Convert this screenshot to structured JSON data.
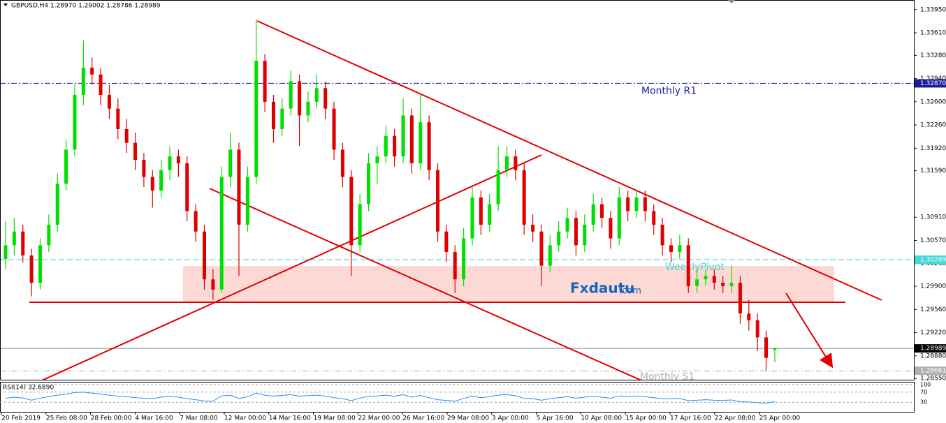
{
  "chart_data": {
    "type": "candlestick",
    "title": "GBPUSD,H4  1.28970 1.29002 1.28786 1.28989",
    "up_color": "#00e000",
    "down_color": "#e00000",
    "ohlc": [
      [
        1.303,
        1.3085,
        1.3015,
        1.305
      ],
      [
        1.305,
        1.309,
        1.3035,
        1.307
      ],
      [
        1.307,
        1.308,
        1.3025,
        1.3035
      ],
      [
        1.3035,
        1.3045,
        1.2975,
        1.2995
      ],
      [
        1.2995,
        1.306,
        1.2985,
        1.305
      ],
      [
        1.305,
        1.3095,
        1.304,
        1.308
      ],
      [
        1.308,
        1.3155,
        1.307,
        1.314
      ],
      [
        1.314,
        1.3205,
        1.313,
        1.319
      ],
      [
        1.319,
        1.3285,
        1.318,
        1.327
      ],
      [
        1.327,
        1.335,
        1.3255,
        1.331
      ],
      [
        1.331,
        1.3325,
        1.3285,
        1.33
      ],
      [
        1.33,
        1.331,
        1.3255,
        1.327
      ],
      [
        1.327,
        1.3285,
        1.3235,
        1.325
      ],
      [
        1.325,
        1.3265,
        1.3205,
        1.322
      ],
      [
        1.322,
        1.3235,
        1.3185,
        1.32
      ],
      [
        1.32,
        1.3215,
        1.316,
        1.3175
      ],
      [
        1.3175,
        1.3185,
        1.3135,
        1.315
      ],
      [
        1.315,
        1.316,
        1.3105,
        1.313
      ],
      [
        1.313,
        1.3175,
        1.312,
        1.316
      ],
      [
        1.316,
        1.3195,
        1.3145,
        1.318
      ],
      [
        1.318,
        1.319,
        1.315,
        1.317
      ],
      [
        1.317,
        1.318,
        1.3085,
        1.31
      ],
      [
        1.31,
        1.311,
        1.3055,
        1.307
      ],
      [
        1.307,
        1.308,
        1.2985,
        1.3
      ],
      [
        1.3,
        1.3015,
        1.297,
        1.2985
      ],
      [
        1.2985,
        1.3165,
        1.298,
        1.315
      ],
      [
        1.315,
        1.3215,
        1.3135,
        1.319
      ],
      [
        1.319,
        1.32,
        1.3005,
        1.308
      ],
      [
        1.308,
        1.3165,
        1.307,
        1.315
      ],
      [
        1.315,
        1.338,
        1.314,
        1.332
      ],
      [
        1.332,
        1.333,
        1.3245,
        1.326
      ],
      [
        1.326,
        1.327,
        1.32,
        1.322
      ],
      [
        1.322,
        1.3265,
        1.321,
        1.325
      ],
      [
        1.325,
        1.3305,
        1.324,
        1.329
      ],
      [
        1.329,
        1.33,
        1.3195,
        1.324
      ],
      [
        1.324,
        1.3275,
        1.323,
        1.326
      ],
      [
        1.326,
        1.33,
        1.325,
        1.328
      ],
      [
        1.328,
        1.329,
        1.3235,
        1.325
      ],
      [
        1.325,
        1.326,
        1.3175,
        1.319
      ],
      [
        1.319,
        1.32,
        1.3135,
        1.315
      ],
      [
        1.315,
        1.316,
        1.3005,
        1.305
      ],
      [
        1.305,
        1.3125,
        1.304,
        1.311
      ],
      [
        1.311,
        1.3185,
        1.31,
        1.317
      ],
      [
        1.317,
        1.3195,
        1.314,
        1.318
      ],
      [
        1.318,
        1.3225,
        1.317,
        1.321
      ],
      [
        1.321,
        1.322,
        1.3165,
        1.318
      ],
      [
        1.318,
        1.3265,
        1.317,
        1.324
      ],
      [
        1.324,
        1.325,
        1.3155,
        1.317
      ],
      [
        1.317,
        1.327,
        1.316,
        1.323
      ],
      [
        1.323,
        1.324,
        1.3145,
        1.316
      ],
      [
        1.316,
        1.317,
        1.3055,
        1.307
      ],
      [
        1.307,
        1.308,
        1.3025,
        1.304
      ],
      [
        1.304,
        1.305,
        1.298,
        1.3
      ],
      [
        1.3,
        1.3075,
        1.299,
        1.306
      ],
      [
        1.306,
        1.3135,
        1.305,
        1.312
      ],
      [
        1.312,
        1.313,
        1.3065,
        1.308
      ],
      [
        1.308,
        1.3125,
        1.307,
        1.311
      ],
      [
        1.311,
        1.3195,
        1.31,
        1.316
      ],
      [
        1.316,
        1.3195,
        1.315,
        1.318
      ],
      [
        1.318,
        1.319,
        1.3145,
        1.316
      ],
      [
        1.316,
        1.317,
        1.3065,
        1.308
      ],
      [
        1.308,
        1.3095,
        1.3055,
        1.307
      ],
      [
        1.307,
        1.308,
        1.299,
        1.302
      ],
      [
        1.302,
        1.3065,
        1.301,
        1.305
      ],
      [
        1.305,
        1.3085,
        1.304,
        1.307
      ],
      [
        1.307,
        1.3105,
        1.306,
        1.309
      ],
      [
        1.309,
        1.31,
        1.3035,
        1.305
      ],
      [
        1.305,
        1.3095,
        1.304,
        1.308
      ],
      [
        1.308,
        1.3125,
        1.307,
        1.311
      ],
      [
        1.311,
        1.312,
        1.3075,
        1.309
      ],
      [
        1.309,
        1.31,
        1.3045,
        1.306
      ],
      [
        1.306,
        1.3135,
        1.305,
        1.312
      ],
      [
        1.312,
        1.313,
        1.3085,
        1.31
      ],
      [
        1.31,
        1.313,
        1.309,
        1.312
      ],
      [
        1.312,
        1.313,
        1.3085,
        1.31
      ],
      [
        1.31,
        1.311,
        1.3065,
        1.308
      ],
      [
        1.308,
        1.309,
        1.3035,
        1.305
      ],
      [
        1.305,
        1.306,
        1.3025,
        1.304
      ],
      [
        1.304,
        1.3065,
        1.303,
        1.305
      ],
      [
        1.305,
        1.306,
        1.298,
        1.299
      ],
      [
        1.299,
        1.3015,
        1.298,
        1.3
      ],
      [
        1.3,
        1.3015,
        1.299,
        1.3005
      ],
      [
        1.3005,
        1.3015,
        1.2985,
        1.2995
      ],
      [
        1.2995,
        1.3005,
        1.298,
        1.299
      ],
      [
        1.299,
        1.302,
        1.298,
        1.2995
      ],
      [
        1.2995,
        1.3005,
        1.2935,
        1.295
      ],
      [
        1.295,
        1.297,
        1.2925,
        1.294
      ],
      [
        1.294,
        1.295,
        1.2895,
        1.2915
      ],
      [
        1.2915,
        1.2925,
        1.2866,
        1.2885
      ],
      [
        1.2897,
        1.29002,
        1.28786,
        1.28989
      ]
    ],
    "ylim": [
      1.2852,
      1.3406
    ],
    "yticks": [
      {
        "value": 1.3395,
        "label": "1.33950"
      },
      {
        "value": 1.3361,
        "label": "1.33610"
      },
      {
        "value": 1.3328,
        "label": "1.33280"
      },
      {
        "value": 1.3294,
        "label": "1.32940"
      },
      {
        "value": 1.326,
        "label": "1.32600"
      },
      {
        "value": 1.3226,
        "label": "1.32260"
      },
      {
        "value": 1.3192,
        "label": "1.31920"
      },
      {
        "value": 1.3159,
        "label": "1.31590"
      },
      {
        "value": 1.3091,
        "label": "1.30910"
      },
      {
        "value": 1.3057,
        "label": "1.30570"
      },
      {
        "value": 1.3023,
        "label": "1.30230"
      },
      {
        "value": 1.299,
        "label": "1.29900"
      },
      {
        "value": 1.2956,
        "label": "1.29560"
      },
      {
        "value": 1.2922,
        "label": "1.29220"
      },
      {
        "value": 1.2888,
        "label": "1.28880"
      },
      {
        "value": 1.2855,
        "label": "1.28550"
      }
    ],
    "levels": [
      {
        "name": "Monthly R1",
        "value": 1.3287,
        "value_label": "1.32870",
        "color": "#1c1c9e"
      },
      {
        "name": "WeeklyPivot",
        "value": 1.30289,
        "value_label": "1.30289",
        "color": "#40d8d8"
      },
      {
        "value": 1.28989,
        "value_label": "1.28989",
        "color": "#6a9a8a"
      },
      {
        "name": "Monthly S1",
        "value": 1.28661,
        "value_label": "1.28661",
        "color": "#b0b0b0"
      }
    ],
    "x_labels": [
      "20 Feb 2019",
      "25 Feb 08:00",
      "28 Feb 00:00",
      "4 Mar 16:00",
      "7 Mar 08:00",
      "12 Mar 00:00",
      "14 Mar 16:00",
      "19 Mar 08:00",
      "22 Mar 00:00",
      "26 Mar 16:00",
      "29 Mar 08:00",
      "3 Apr 00:00",
      "5 Apr 16:00",
      "10 Apr 08:00",
      "15 Apr 00:00",
      "17 Apr 16:00",
      "22 Apr 08:00",
      "25 Apr 00:00"
    ],
    "watermark": [
      "Fxdautu",
      ".com"
    ],
    "rsi": {
      "title": "RSI(14) 32.6890",
      "color": "#1e90ff",
      "ylim": [
        0,
        100
      ],
      "yticks": [
        100,
        70,
        30
      ],
      "values": [
        45,
        50,
        47,
        38,
        46,
        52,
        58,
        62,
        68,
        70,
        66,
        62,
        58,
        54,
        52,
        48,
        46,
        44,
        50,
        53,
        50,
        44,
        40,
        35,
        34,
        55,
        58,
        45,
        52,
        66,
        58,
        54,
        57,
        60,
        54,
        56,
        58,
        54,
        48,
        44,
        36,
        46,
        54,
        55,
        58,
        54,
        60,
        50,
        57,
        48,
        40,
        37,
        34,
        45,
        54,
        48,
        52,
        58,
        60,
        56,
        45,
        44,
        38,
        44,
        48,
        52,
        46,
        50,
        54,
        50,
        46,
        55,
        52,
        55,
        52,
        48,
        44,
        43,
        45,
        36,
        38,
        40,
        38,
        37,
        39,
        32,
        31,
        28,
        26,
        32.689
      ]
    }
  }
}
